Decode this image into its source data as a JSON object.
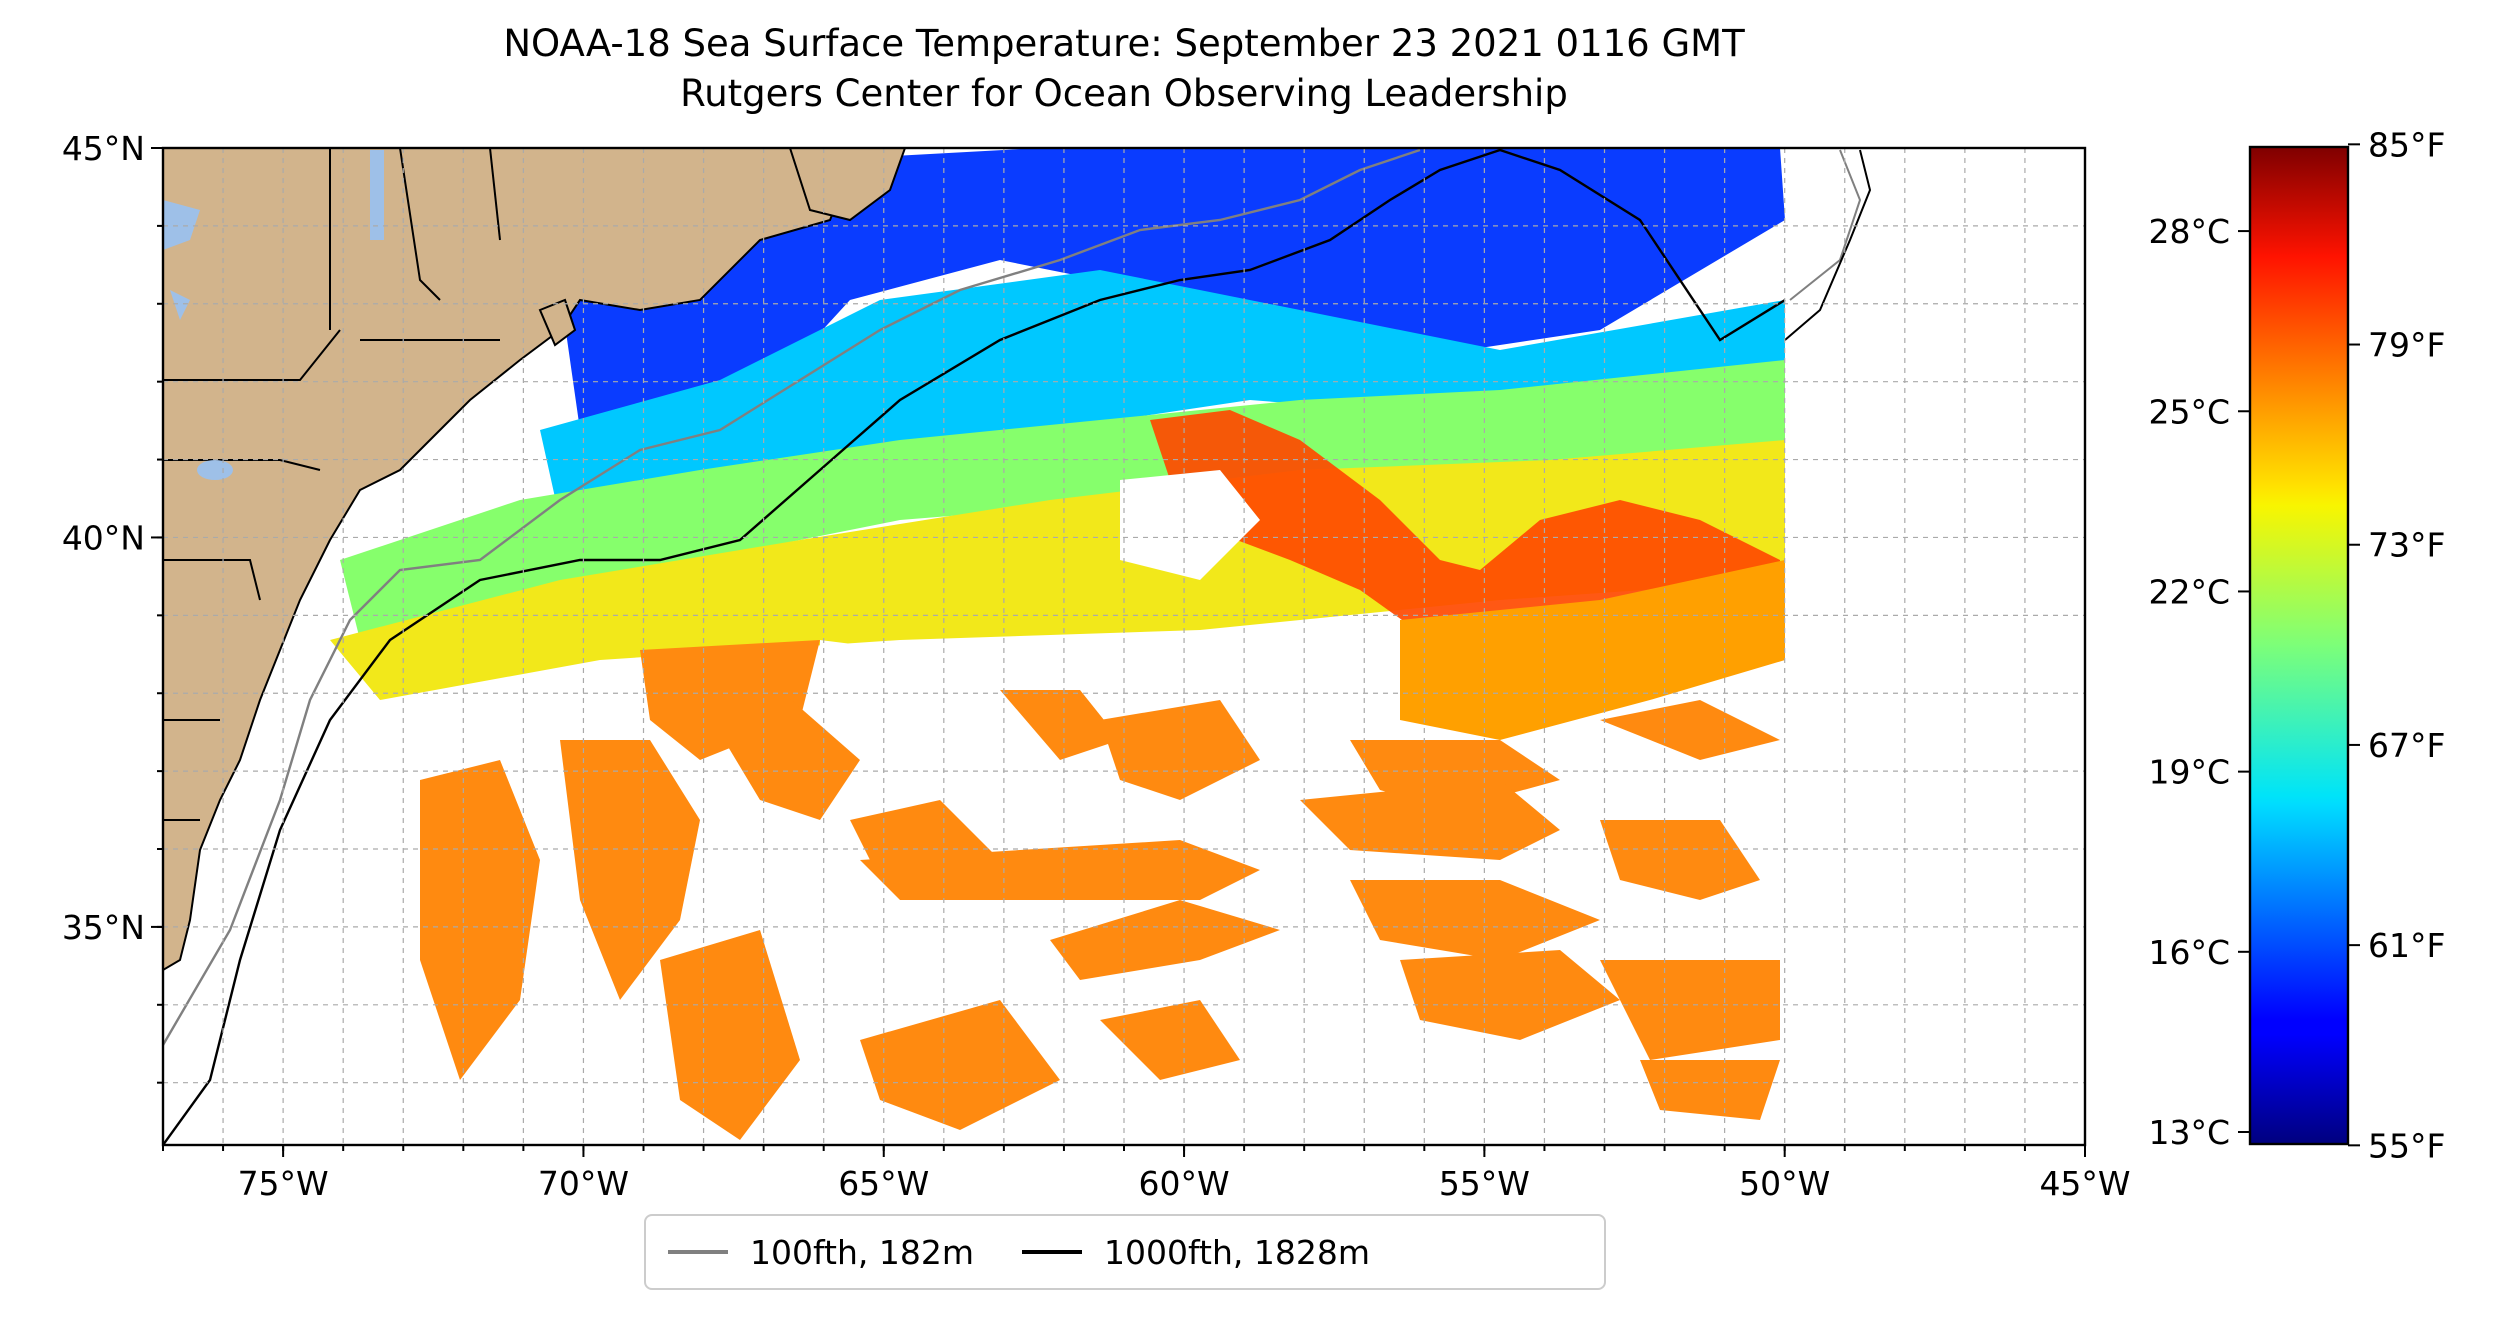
{
  "title_line1": "NOAA-18 Sea Surface Temperature: September 23 2021 0116 GMT",
  "title_line2": "Rutgers Center for Ocean Observing Leadership",
  "map": {
    "lon_range": [
      -77,
      -45
    ],
    "lat_range": [
      32.2,
      45
    ],
    "lon_ticks": [
      {
        "value": -75,
        "label": "75°W"
      },
      {
        "value": -70,
        "label": "70°W"
      },
      {
        "value": -65,
        "label": "65°W"
      },
      {
        "value": -60,
        "label": "60°W"
      },
      {
        "value": -55,
        "label": "55°W"
      },
      {
        "value": -50,
        "label": "50°W"
      },
      {
        "value": -45,
        "label": "45°W"
      }
    ],
    "lat_ticks": [
      {
        "value": 45,
        "label": "45°N"
      },
      {
        "value": 40,
        "label": "40°N"
      },
      {
        "value": 35,
        "label": "35°N"
      }
    ],
    "colors": {
      "land": "#d2b48c",
      "lakes": "#9ec0e8",
      "grid": "#aaaaaa"
    }
  },
  "legend": {
    "items": [
      {
        "label": "100fth, 182m",
        "color": "#808080"
      },
      {
        "label": "1000fth, 1828m",
        "color": "#000000"
      }
    ]
  },
  "colorbar": {
    "colormap": "jet",
    "celsius_range": [
      12.8,
      29.4
    ],
    "celsius_ticks": [
      {
        "value": 13,
        "label": "13°C"
      },
      {
        "value": 16,
        "label": "16°C"
      },
      {
        "value": 19,
        "label": "19°C"
      },
      {
        "value": 22,
        "label": "22°C"
      },
      {
        "value": 25,
        "label": "25°C"
      },
      {
        "value": 28,
        "label": "28°C"
      }
    ],
    "fahrenheit_ticks": [
      {
        "value": 55,
        "label": "55°F"
      },
      {
        "value": 61,
        "label": "61°F"
      },
      {
        "value": 67,
        "label": "67°F"
      },
      {
        "value": 73,
        "label": "73°F"
      },
      {
        "value": 79,
        "label": "79°F"
      },
      {
        "value": 85,
        "label": "85°F"
      }
    ]
  }
}
